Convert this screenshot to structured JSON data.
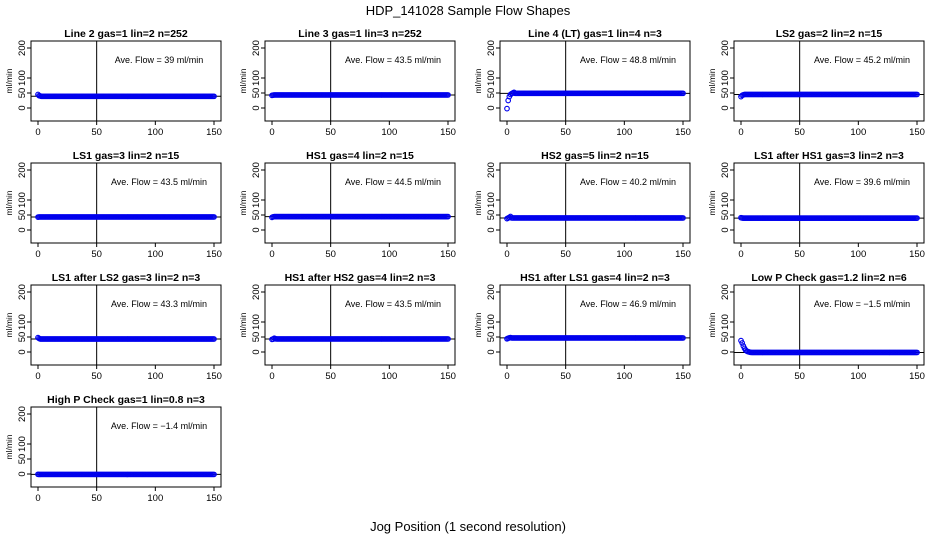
{
  "figure": {
    "title": "HDP_141028  Sample Flow Shapes",
    "xlabel": "Jog Position (1 second resolution)"
  },
  "chart_data": [
    {
      "type": "scatter",
      "title": "Line 2 gas=1 lin=2 n=252",
      "annotation": "Ave. Flow =  39  ml/min",
      "ylabel": "ml/min",
      "xlim": [
        0,
        150
      ],
      "ylim": [
        -30,
        210
      ],
      "xticks": [
        "0",
        "50",
        "100",
        "150"
      ],
      "yticks": [
        "0",
        "50",
        "100",
        "200"
      ],
      "hline": 39,
      "vline": 50,
      "level": 39,
      "start": [
        45,
        41,
        40
      ]
    },
    {
      "type": "scatter",
      "title": "Line 3 gas=1 lin=3 n=252",
      "annotation": "Ave. Flow =  43.5  ml/min",
      "ylabel": "ml/min",
      "xlim": [
        0,
        150
      ],
      "ylim": [
        -30,
        210
      ],
      "xticks": [
        "0",
        "50",
        "100",
        "150"
      ],
      "yticks": [
        "0",
        "50",
        "100",
        "200"
      ],
      "hline": 43.5,
      "vline": 50,
      "level": 43.5,
      "start": [
        42,
        43,
        43.5
      ]
    },
    {
      "type": "scatter",
      "title": "Line 4 (LT) gas=1 lin=4 n=3",
      "annotation": "Ave. Flow =  48.8  ml/min",
      "ylabel": "ml/min",
      "xlim": [
        0,
        150
      ],
      "ylim": [
        -30,
        210
      ],
      "xticks": [
        "0",
        "50",
        "100",
        "150"
      ],
      "yticks": [
        "0",
        "50",
        "100",
        "200"
      ],
      "hline": 48.8,
      "vline": 50,
      "level": 49,
      "start": [
        -2,
        25,
        38,
        45,
        48,
        50,
        52
      ]
    },
    {
      "type": "scatter",
      "title": "LS2 gas=2 lin=2 n=15",
      "annotation": "Ave. Flow =  45.2  ml/min",
      "ylabel": "ml/min",
      "xlim": [
        0,
        150
      ],
      "ylim": [
        -30,
        210
      ],
      "xticks": [
        "0",
        "50",
        "100",
        "150"
      ],
      "yticks": [
        "0",
        "50",
        "100",
        "200"
      ],
      "hline": 45.2,
      "vline": 50,
      "level": 45.2,
      "start": [
        38,
        42,
        44
      ]
    },
    {
      "type": "scatter",
      "title": "LS1 gas=3 lin=2 n=15",
      "annotation": "Ave. Flow =  43.5  ml/min",
      "ylabel": "ml/min",
      "xlim": [
        0,
        150
      ],
      "ylim": [
        -30,
        210
      ],
      "xticks": [
        "0",
        "50",
        "100",
        "150"
      ],
      "yticks": [
        "0",
        "50",
        "100",
        "200"
      ],
      "hline": 43.5,
      "vline": 50,
      "level": 43.5,
      "start": [
        43,
        43.5
      ]
    },
    {
      "type": "scatter",
      "title": "HS1 gas=4 lin=2 n=15",
      "annotation": "Ave. Flow =  44.5  ml/min",
      "ylabel": "ml/min",
      "xlim": [
        0,
        150
      ],
      "ylim": [
        -30,
        210
      ],
      "xticks": [
        "0",
        "50",
        "100",
        "150"
      ],
      "yticks": [
        "0",
        "50",
        "100",
        "200"
      ],
      "hline": 44.5,
      "vline": 50,
      "level": 44.5,
      "start": [
        42,
        44,
        44.5
      ]
    },
    {
      "type": "scatter",
      "title": "HS2 gas=5 lin=2 n=15",
      "annotation": "Ave. Flow =  40.2  ml/min",
      "ylabel": "ml/min",
      "xlim": [
        0,
        150
      ],
      "ylim": [
        -30,
        210
      ],
      "xticks": [
        "0",
        "50",
        "100",
        "150"
      ],
      "yticks": [
        "0",
        "50",
        "100",
        "200"
      ],
      "hline": 40.2,
      "vline": 50,
      "level": 40.2,
      "start": [
        38,
        40,
        42,
        45
      ]
    },
    {
      "type": "scatter",
      "title": "LS1 after HS1 gas=3 lin=2 n=3",
      "annotation": "Ave. Flow =  39.6  ml/min",
      "ylabel": "ml/min",
      "xlim": [
        0,
        150
      ],
      "ylim": [
        -30,
        210
      ],
      "xticks": [
        "0",
        "50",
        "100",
        "150"
      ],
      "yticks": [
        "0",
        "50",
        "100",
        "200"
      ],
      "hline": 39.6,
      "vline": 50,
      "level": 39.6,
      "start": [
        41,
        40,
        39.6
      ]
    },
    {
      "type": "scatter",
      "title": "LS1 after LS2 gas=3 lin=2 n=3",
      "annotation": "Ave. Flow =  43.3  ml/min",
      "ylabel": "ml/min",
      "xlim": [
        0,
        150
      ],
      "ylim": [
        -30,
        210
      ],
      "xticks": [
        "0",
        "50",
        "100",
        "150"
      ],
      "yticks": [
        "0",
        "50",
        "100",
        "200"
      ],
      "hline": 43.3,
      "vline": 50,
      "level": 43.3,
      "start": [
        48,
        45,
        43.3
      ]
    },
    {
      "type": "scatter",
      "title": "HS1 after HS2 gas=4 lin=2 n=3",
      "annotation": "Ave. Flow =  43.5  ml/min",
      "ylabel": "ml/min",
      "xlim": [
        0,
        150
      ],
      "ylim": [
        -30,
        210
      ],
      "xticks": [
        "0",
        "50",
        "100",
        "150"
      ],
      "yticks": [
        "0",
        "50",
        "100",
        "200"
      ],
      "hline": 43.5,
      "vline": 50,
      "level": 43.5,
      "start": [
        42,
        43,
        46,
        44
      ]
    },
    {
      "type": "scatter",
      "title": "HS1 after LS1 gas=4 lin=2 n=3",
      "annotation": "Ave. Flow =  46.9  ml/min",
      "ylabel": "ml/min",
      "xlim": [
        0,
        150
      ],
      "ylim": [
        -30,
        210
      ],
      "xticks": [
        "0",
        "50",
        "100",
        "150"
      ],
      "yticks": [
        "0",
        "50",
        "100",
        "200"
      ],
      "hline": 46.9,
      "vline": 50,
      "level": 46.9,
      "start": [
        44,
        46,
        47,
        48
      ]
    },
    {
      "type": "scatter",
      "title": "Low P Check gas=1.2 lin=2 n=6",
      "annotation": "Ave. Flow =  −1.5  ml/min",
      "ylabel": "ml/min",
      "xlim": [
        0,
        150
      ],
      "ylim": [
        -30,
        210
      ],
      "xticks": [
        "0",
        "50",
        "100",
        "150"
      ],
      "yticks": [
        "0",
        "50",
        "100",
        "200"
      ],
      "hline": -1.5,
      "vline": 50,
      "level": -1.5,
      "start": [
        38,
        30,
        20,
        12,
        6,
        3,
        1,
        0,
        -1
      ]
    },
    {
      "type": "scatter",
      "title": "High P Check gas=1 lin=0.8 n=3",
      "annotation": "Ave. Flow =  −1.4  ml/min",
      "ylabel": "ml/min",
      "xlim": [
        0,
        150
      ],
      "ylim": [
        -30,
        210
      ],
      "xticks": [
        "0",
        "50",
        "100",
        "150"
      ],
      "yticks": [
        "0",
        "50",
        "100",
        "200"
      ],
      "hline": -1.4,
      "vline": 50,
      "level": -1.4,
      "start": [
        -1,
        -1.5,
        -1.4
      ]
    }
  ],
  "colors": {
    "points": "#0000ee",
    "lines": "#000000"
  }
}
